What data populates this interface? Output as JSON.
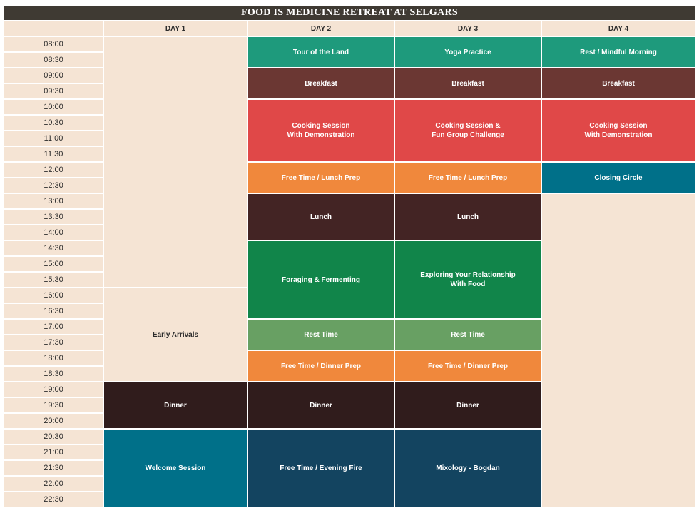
{
  "title": "FOOD IS MEDICINE RETREAT AT SELGARS",
  "days": [
    "DAY 1",
    "DAY 2",
    "DAY 3",
    "DAY 4"
  ],
  "times": [
    "08:00",
    "08:30",
    "09:00",
    "09:30",
    "10:00",
    "10:30",
    "11:00",
    "11:30",
    "12:00",
    "12:30",
    "13:00",
    "13:30",
    "14:00",
    "14:30",
    "15:00",
    "15:30",
    "16:00",
    "16:30",
    "17:00",
    "17:30",
    "18:00",
    "18:30",
    "19:00",
    "19:30",
    "20:00",
    "20:30",
    "21:00",
    "21:30",
    "22:00",
    "22:30"
  ],
  "colors": {
    "header_bar": "#3f3a33",
    "cream": "#f5e4d4",
    "teal_green": "#1e9a7c",
    "brown": "#6b3733",
    "red": "#e04848",
    "orange": "#f0883c",
    "dark_brown": "#432424",
    "green": "#11854a",
    "sage": "#68a063",
    "dinner": "#301c1c",
    "teal": "#007089",
    "navy": "#134460"
  },
  "events": [
    {
      "day": 0,
      "start": 0,
      "end": 16,
      "label": "",
      "color": "cream"
    },
    {
      "day": 0,
      "start": 16,
      "end": 22,
      "label": "Early Arrivals",
      "color": "cream"
    },
    {
      "day": 0,
      "start": 22,
      "end": 25,
      "label": "Dinner",
      "color": "dinner"
    },
    {
      "day": 0,
      "start": 25,
      "end": 30,
      "label": "Welcome Session",
      "color": "teal"
    },
    {
      "day": 1,
      "start": 0,
      "end": 2,
      "label": "Tour of the Land",
      "color": "teal_green"
    },
    {
      "day": 1,
      "start": 2,
      "end": 4,
      "label": "Breakfast",
      "color": "brown"
    },
    {
      "day": 1,
      "start": 4,
      "end": 8,
      "label": "Cooking Session\nWith Demonstration",
      "color": "red"
    },
    {
      "day": 1,
      "start": 8,
      "end": 10,
      "label": "Free Time / Lunch Prep",
      "color": "orange"
    },
    {
      "day": 1,
      "start": 10,
      "end": 13,
      "label": "Lunch",
      "color": "dark_brown"
    },
    {
      "day": 1,
      "start": 13,
      "end": 18,
      "label": "Foraging & Fermenting",
      "color": "green"
    },
    {
      "day": 1,
      "start": 18,
      "end": 20,
      "label": "Rest Time",
      "color": "sage"
    },
    {
      "day": 1,
      "start": 20,
      "end": 22,
      "label": "Free Time / Dinner Prep",
      "color": "orange"
    },
    {
      "day": 1,
      "start": 22,
      "end": 25,
      "label": "Dinner",
      "color": "dinner"
    },
    {
      "day": 1,
      "start": 25,
      "end": 30,
      "label": "Free Time / Evening Fire",
      "color": "navy"
    },
    {
      "day": 2,
      "start": 0,
      "end": 2,
      "label": "Yoga Practice",
      "color": "teal_green"
    },
    {
      "day": 2,
      "start": 2,
      "end": 4,
      "label": "Breakfast",
      "color": "brown"
    },
    {
      "day": 2,
      "start": 4,
      "end": 8,
      "label": "Cooking Session &\nFun Group Challenge",
      "color": "red"
    },
    {
      "day": 2,
      "start": 8,
      "end": 10,
      "label": "Free Time / Lunch Prep",
      "color": "orange"
    },
    {
      "day": 2,
      "start": 10,
      "end": 13,
      "label": "Lunch",
      "color": "dark_brown"
    },
    {
      "day": 2,
      "start": 13,
      "end": 18,
      "label": "Exploring Your Relationship\nWith Food",
      "color": "green"
    },
    {
      "day": 2,
      "start": 18,
      "end": 20,
      "label": "Rest Time",
      "color": "sage"
    },
    {
      "day": 2,
      "start": 20,
      "end": 22,
      "label": "Free Time / Dinner Prep",
      "color": "orange"
    },
    {
      "day": 2,
      "start": 22,
      "end": 25,
      "label": "Dinner",
      "color": "dinner"
    },
    {
      "day": 2,
      "start": 25,
      "end": 30,
      "label": "Mixology - Bogdan",
      "color": "navy"
    },
    {
      "day": 3,
      "start": 0,
      "end": 2,
      "label": "Rest / Mindful Morning",
      "color": "teal_green"
    },
    {
      "day": 3,
      "start": 2,
      "end": 4,
      "label": "Breakfast",
      "color": "brown"
    },
    {
      "day": 3,
      "start": 4,
      "end": 8,
      "label": "Cooking Session\nWith Demonstration",
      "color": "red"
    },
    {
      "day": 3,
      "start": 8,
      "end": 10,
      "label": "Closing Circle",
      "color": "teal"
    },
    {
      "day": 3,
      "start": 10,
      "end": 30,
      "label": "",
      "color": "cream"
    }
  ]
}
